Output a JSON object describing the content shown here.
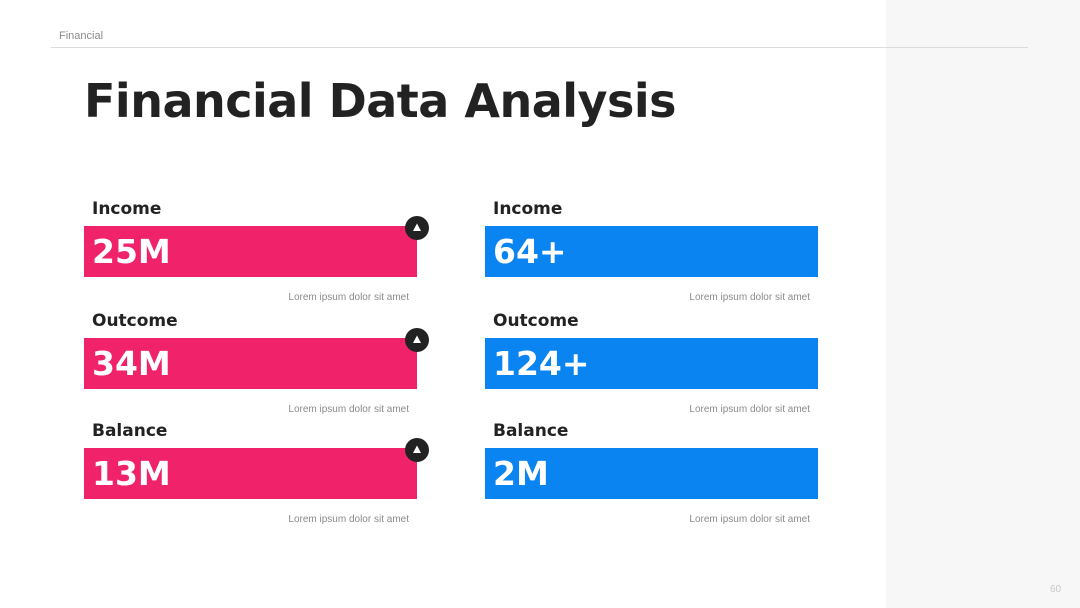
{
  "header": {
    "section": "Financial"
  },
  "title": "Financial Data Analysis",
  "columns": [
    {
      "items": [
        {
          "label": "Income",
          "value": "25M",
          "caption": "Lorem ipsum dolor sit amet"
        },
        {
          "label": "Outcome",
          "value": "34M",
          "caption": "Lorem ipsum dolor sit amet"
        },
        {
          "label": "Balance",
          "value": "13M",
          "caption": "Lorem ipsum dolor sit amet"
        }
      ]
    },
    {
      "items": [
        {
          "label": "Income",
          "value": "64+",
          "caption": "Lorem ipsum dolor sit amet"
        },
        {
          "label": "Outcome",
          "value": "124+",
          "caption": "Lorem ipsum dolor sit amet"
        },
        {
          "label": "Balance",
          "value": "2M",
          "caption": "Lorem ipsum dolor sit amet"
        }
      ]
    }
  ],
  "page_number": "60"
}
